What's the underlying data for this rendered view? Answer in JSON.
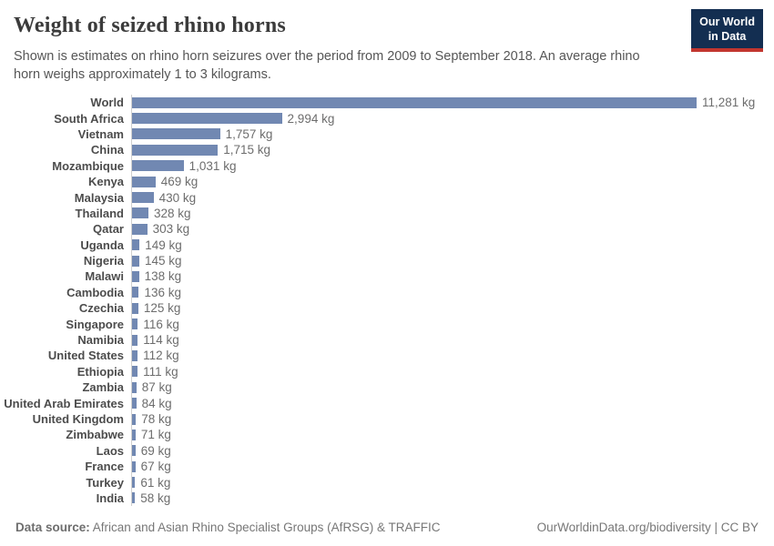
{
  "header": {
    "title": "Weight of seized rhino horns",
    "subtitle": "Shown is estimates on rhino horn seizures over the period from 2009 to September 2018. An average rhino horn weighs approximately 1 to 3 kilograms."
  },
  "logo": {
    "line1": "Our World",
    "line2": "in Data",
    "bg_color": "#132e51",
    "stripe_color": "#c2362f"
  },
  "chart_data": {
    "type": "bar",
    "orientation": "horizontal",
    "title": "Weight of seized rhino horns",
    "unit": "kg",
    "xlim": [
      0,
      11281
    ],
    "grid": false,
    "legend": false,
    "bar_color": "#7188b2",
    "categories": [
      "World",
      "South Africa",
      "Vietnam",
      "China",
      "Mozambique",
      "Kenya",
      "Malaysia",
      "Thailand",
      "Qatar",
      "Uganda",
      "Nigeria",
      "Malawi",
      "Cambodia",
      "Czechia",
      "Singapore",
      "Namibia",
      "United States",
      "Ethiopia",
      "Zambia",
      "United Arab Emirates",
      "United Kingdom",
      "Zimbabwe",
      "Laos",
      "France",
      "Turkey",
      "India"
    ],
    "values": [
      11281,
      2994,
      1757,
      1715,
      1031,
      469,
      430,
      328,
      303,
      149,
      145,
      138,
      136,
      125,
      116,
      114,
      112,
      111,
      87,
      84,
      78,
      71,
      69,
      67,
      61,
      58
    ],
    "value_labels": [
      "11,281 kg",
      "2,994 kg",
      "1,757 kg",
      "1,715 kg",
      "1,031 kg",
      "469 kg",
      "430 kg",
      "328 kg",
      "303 kg",
      "149 kg",
      "145 kg",
      "138 kg",
      "136 kg",
      "125 kg",
      "116 kg",
      "114 kg",
      "112 kg",
      "111 kg",
      "87 kg",
      "84 kg",
      "78 kg",
      "71 kg",
      "69 kg",
      "67 kg",
      "61 kg",
      "58 kg"
    ]
  },
  "footer": {
    "datasource_label": "Data source:",
    "datasource_text": "African and Asian Rhino Specialist Groups (AfRSG) & TRAFFIC",
    "right_text": "OurWorldinData.org/biodiversity | CC BY"
  }
}
